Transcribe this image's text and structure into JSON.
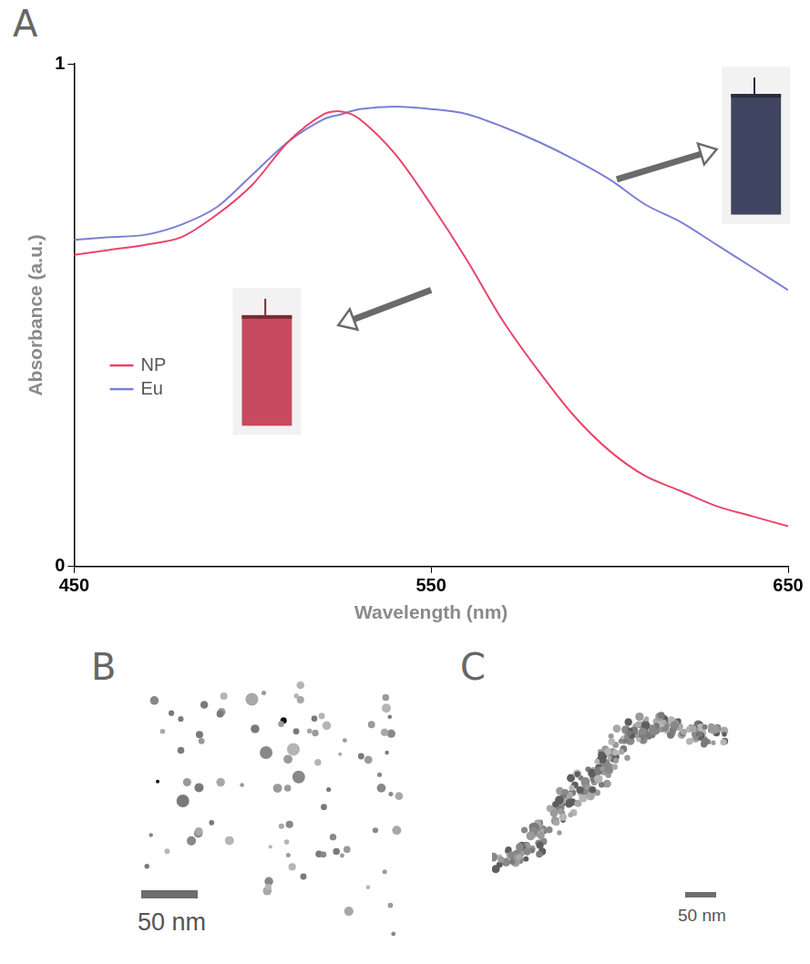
{
  "chart_data": {
    "type": "line",
    "x_label": "Wavelength (nm)",
    "y_label": "Absorbance (a.u.)",
    "x": [
      450,
      460,
      470,
      480,
      490,
      500,
      510,
      520,
      525,
      530,
      540,
      550,
      560,
      570,
      580,
      590,
      600,
      610,
      620,
      630,
      640,
      650
    ],
    "series": [
      {
        "name": "NP",
        "color": "#e8456b",
        "values": [
          0.62,
          0.63,
          0.64,
          0.655,
          0.7,
          0.76,
          0.845,
          0.9,
          0.905,
          0.89,
          0.82,
          0.72,
          0.61,
          0.49,
          0.39,
          0.3,
          0.23,
          0.18,
          0.15,
          0.12,
          0.1,
          0.08
        ]
      },
      {
        "name": "Eu",
        "color": "#7b7fd6",
        "values": [
          0.65,
          0.655,
          0.66,
          0.68,
          0.715,
          0.78,
          0.845,
          0.89,
          0.9,
          0.91,
          0.915,
          0.91,
          0.9,
          0.875,
          0.845,
          0.81,
          0.77,
          0.72,
          0.685,
          0.64,
          0.595,
          0.55
        ]
      }
    ],
    "xlim": [
      450,
      650
    ],
    "xticks": [
      450,
      550,
      650
    ],
    "ylim": [
      0,
      1
    ],
    "yticks": [
      0,
      1
    ],
    "grid": false,
    "legend": "lower left"
  },
  "panels": [
    {
      "label": "A"
    },
    {
      "label": "B",
      "scale_bar": "50 nm"
    },
    {
      "label": "C",
      "scale_bar": "50 nm"
    }
  ]
}
